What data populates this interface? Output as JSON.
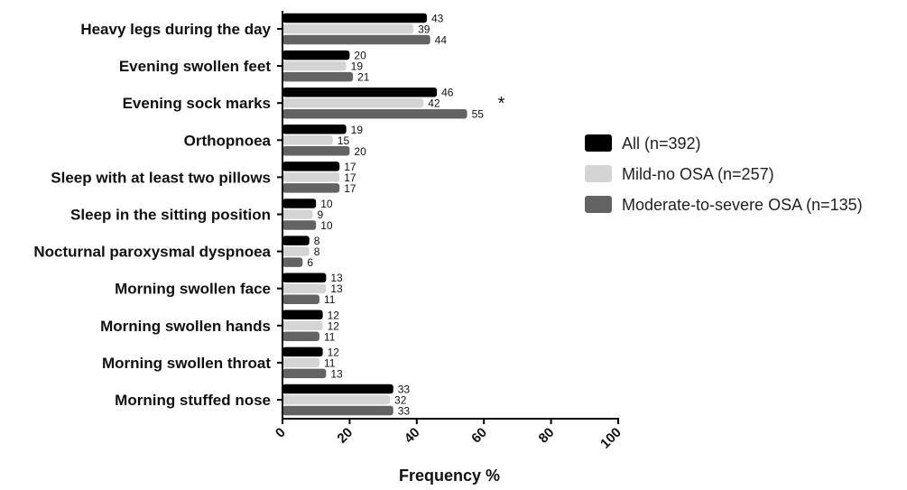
{
  "chart_data": {
    "type": "bar",
    "orientation": "horizontal",
    "title": "",
    "xlabel": "Frequency %",
    "ylabel": "",
    "xlim": [
      0,
      100
    ],
    "xticks": [
      "0",
      "20",
      "40",
      "60",
      "80",
      "100"
    ],
    "categories": [
      "Heavy legs during the day",
      "Evening swollen feet",
      "Evening sock marks",
      "Orthopnoea",
      "Sleep with at least two pillows",
      "Sleep in the sitting position",
      "Nocturnal paroxysmal dyspnoea",
      "Morning swollen face",
      "Morning swollen hands",
      "Morning swollen throat",
      "Morning stuffed nose"
    ],
    "series": [
      {
        "name": "All (n=392)",
        "color": "#000000",
        "values": [
          43,
          20,
          46,
          19,
          17,
          10,
          8,
          13,
          12,
          12,
          33
        ]
      },
      {
        "name": "Mild-no OSA (n=257)",
        "color": "#d4d4d4",
        "values": [
          39,
          19,
          42,
          15,
          17,
          9,
          8,
          13,
          12,
          11,
          32
        ]
      },
      {
        "name": "Moderate-to-severe OSA (n=135)",
        "color": "#636363",
        "values": [
          44,
          21,
          55,
          20,
          17,
          10,
          6,
          11,
          11,
          13,
          33
        ]
      }
    ],
    "annotations": [
      {
        "category": "Evening sock marks",
        "text": "*"
      }
    ],
    "legend_position": "right",
    "grid": false
  }
}
